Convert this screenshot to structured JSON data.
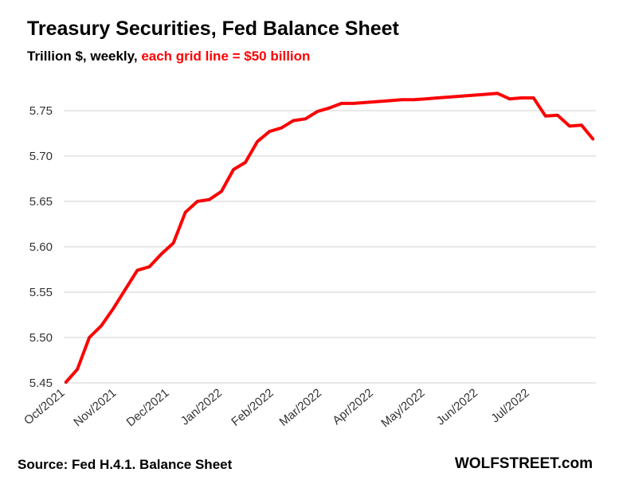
{
  "chart_data": {
    "type": "line",
    "title": "Treasury Securities, Fed Balance Sheet",
    "subtitle_main": "Trillion $, weekly,",
    "subtitle_note": "each grid line = $50 billion",
    "xlabel": "",
    "ylabel": "",
    "ylim": [
      5.45,
      5.8
    ],
    "yticks": [
      "5.45",
      "5.50",
      "5.55",
      "5.60",
      "5.65",
      "5.70",
      "5.75"
    ],
    "ytick_values": [
      5.45,
      5.5,
      5.55,
      5.6,
      5.65,
      5.7,
      5.75
    ],
    "xticks": [
      {
        "label": "Oct/2021",
        "week": 0
      },
      {
        "label": "Nov/2021",
        "week": 4.3
      },
      {
        "label": "Dec/2021",
        "week": 8.7
      },
      {
        "label": "Jan/2022",
        "week": 13.1
      },
      {
        "label": "Feb/2022",
        "week": 17.4
      },
      {
        "label": "Mar/2022",
        "week": 21.4
      },
      {
        "label": "Apr/2022",
        "week": 25.7
      },
      {
        "label": "May/2022",
        "week": 30.0
      },
      {
        "label": "Jun/2022",
        "week": 34.4
      },
      {
        "label": "Jul/2022",
        "week": 38.7
      }
    ],
    "grid": true,
    "series": [
      {
        "name": "Treasury Securities",
        "color": "#ff0000",
        "values": [
          5.45,
          5.465,
          5.5,
          5.513,
          5.532,
          5.553,
          5.574,
          5.578,
          5.592,
          5.604,
          5.638,
          5.65,
          5.652,
          5.661,
          5.685,
          5.693,
          5.716,
          5.727,
          5.731,
          5.739,
          5.741,
          5.749,
          5.753,
          5.758,
          5.758,
          5.759,
          5.76,
          5.761,
          5.762,
          5.762,
          5.763,
          5.764,
          5.765,
          5.766,
          5.767,
          5.768,
          5.769,
          5.763,
          5.764,
          5.764,
          5.744,
          5.745,
          5.733,
          5.734,
          5.718
        ]
      }
    ]
  },
  "footer": {
    "source": "Source: Fed H.4.1. Balance Sheet",
    "brand": "WOLFSTREET.com"
  }
}
